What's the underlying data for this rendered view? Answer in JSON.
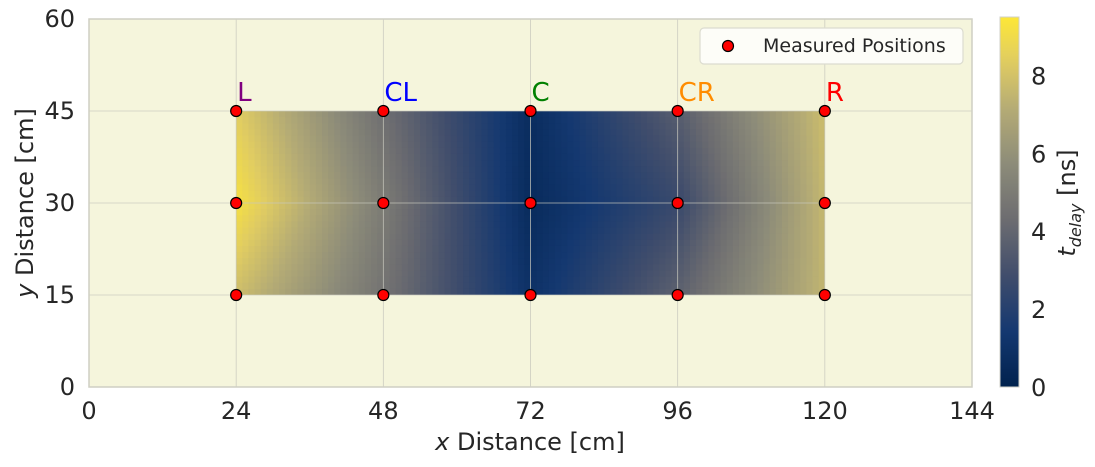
{
  "chart_data": {
    "type": "heatmap",
    "xlabel_var": "x",
    "xlabel_rest": " Distance [cm]",
    "ylabel_var": "y",
    "ylabel_rest": " Distance [cm]",
    "colorbar_label_var": "t",
    "colorbar_label_sub": "delay",
    "colorbar_label_rest": " [ns]",
    "xlim": [
      0,
      144
    ],
    "ylim": [
      0,
      60
    ],
    "x_ticks": [
      0,
      24,
      48,
      72,
      96,
      120,
      144
    ],
    "y_ticks": [
      0,
      15,
      30,
      45,
      60
    ],
    "colorbar_range": [
      0,
      9.5
    ],
    "colorbar_ticks": [
      0,
      2,
      4,
      6,
      8
    ],
    "grid": true,
    "legend": {
      "label": "Measured Positions",
      "placement": "top-right"
    },
    "heat_x": [
      24,
      48,
      72,
      96,
      120
    ],
    "heat_y": [
      15,
      30,
      45
    ],
    "heat_values": [
      [
        7.8,
        4.6,
        1.0,
        3.8,
        7.5
      ],
      [
        9.2,
        5.0,
        0.6,
        2.6,
        7.6
      ],
      [
        8.4,
        4.4,
        0.7,
        3.6,
        7.8
      ]
    ],
    "positions": {
      "x": [
        24,
        48,
        72,
        96,
        120
      ],
      "y": [
        15,
        30,
        45
      ]
    },
    "position_labels": [
      {
        "text": "L",
        "x": 24,
        "color": "#800080"
      },
      {
        "text": "CL",
        "x": 48,
        "color": "#0000ff"
      },
      {
        "text": "C",
        "x": 72,
        "color": "#008000"
      },
      {
        "text": "CR",
        "x": 96,
        "color": "#ff8c00"
      },
      {
        "text": "R",
        "x": 120,
        "color": "#ff0000"
      }
    ],
    "colors": {
      "plot_background": "#f5f5dc",
      "grid": "#d4d4c4",
      "marker_fill": "#ff0000",
      "marker_edge": "#000000",
      "colormap": "cividis"
    }
  }
}
